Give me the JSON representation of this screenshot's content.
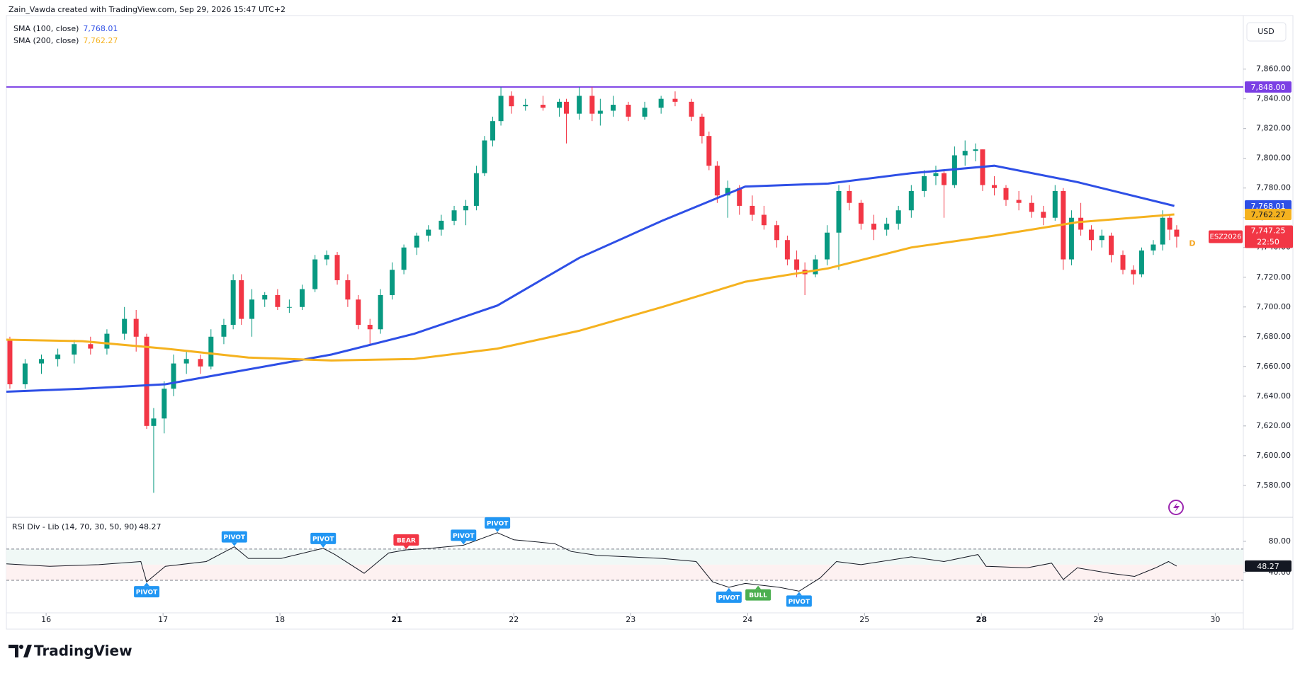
{
  "header": {
    "credit": "Zain_Vawda created with TradingView.com, Sep 29, 2026 15:47 UTC+2",
    "brand": "TradingView"
  },
  "chart_data": [
    {
      "type": "candlestick",
      "currency": "USD",
      "interval_marker": "D",
      "xlim": [
        -0.34,
        10.24
      ],
      "ylim": [
        7559,
        7896
      ],
      "yticks": [
        {
          "value": 7580,
          "label": "7,580.00"
        },
        {
          "value": 7600,
          "label": "7,600.00"
        },
        {
          "value": 7620,
          "label": "7,620.00"
        },
        {
          "value": 7640,
          "label": "7,640.00"
        },
        {
          "value": 7660,
          "label": "7,660.00"
        },
        {
          "value": 7680,
          "label": "7,680.00"
        },
        {
          "value": 7700,
          "label": "7,700.00"
        },
        {
          "value": 7720,
          "label": "7,720.00"
        },
        {
          "value": 7740,
          "label": "7,740.00"
        },
        {
          "value": 7760,
          "label": "7,760.00"
        },
        {
          "value": 7780,
          "label": "7,780.00"
        },
        {
          "value": 7800,
          "label": "7,800.00"
        },
        {
          "value": 7820,
          "label": "7,820.00"
        },
        {
          "value": 7840,
          "label": "7,840.00"
        },
        {
          "value": 7860,
          "label": "7,860.00"
        }
      ],
      "up_color": "#089981",
      "down_color": "#f23645",
      "candles": {
        "x": [
          -0.31,
          -0.18,
          -0.04,
          0.1,
          0.24,
          0.38,
          0.52,
          0.67,
          0.77,
          0.86,
          0.92,
          1.01,
          1.09,
          1.2,
          1.32,
          1.41,
          1.52,
          1.6,
          1.67,
          1.76,
          1.87,
          1.98,
          2.08,
          2.19,
          2.3,
          2.4,
          2.49,
          2.58,
          2.67,
          2.77,
          2.86,
          2.96,
          3.06,
          3.17,
          3.27,
          3.38,
          3.49,
          3.59,
          3.68,
          3.75,
          3.82,
          3.89,
          3.98,
          4.1,
          4.25,
          4.39,
          4.45,
          4.56,
          4.67,
          4.74,
          4.85,
          4.98,
          5.12,
          5.26,
          5.38,
          5.52,
          5.61,
          5.67,
          5.74,
          5.83,
          5.93,
          6.04,
          6.14,
          6.25,
          6.34,
          6.42,
          6.49,
          6.58,
          6.68,
          6.78,
          6.87,
          6.97,
          7.08,
          7.19,
          7.29,
          7.4,
          7.51,
          7.61,
          7.68,
          7.77,
          7.86,
          7.95,
          8.01,
          8.11,
          8.21,
          8.32,
          8.43,
          8.53,
          8.63,
          8.7,
          8.77,
          8.85,
          8.94,
          9.03,
          9.11,
          9.21,
          9.3,
          9.37,
          9.47,
          9.55,
          9.61,
          9.67
        ],
        "open": [
          7678,
          7648,
          7662,
          7665,
          7668,
          7675,
          7672,
          7682,
          7692,
          7680,
          7620,
          7625,
          7645,
          7662,
          7665,
          7660,
          7680,
          7688,
          7718,
          7692,
          7705,
          7708,
          7700,
          7700,
          7712,
          7732,
          7735,
          7718,
          7705,
          7688,
          7685,
          7708,
          7725,
          7740,
          7748,
          7752,
          7758,
          7765,
          7768,
          7790,
          7812,
          7825,
          7842,
          7835,
          7836,
          7834,
          7838,
          7830,
          7842,
          7830,
          7832,
          7836,
          7828,
          7834,
          7840,
          7838,
          7828,
          7815,
          7795,
          7775,
          7780,
          7768,
          7762,
          7755,
          7745,
          7732,
          7725,
          7722,
          7732,
          7750,
          7778,
          7770,
          7756,
          7752,
          7756,
          7765,
          7778,
          7788,
          7790,
          7782,
          7802,
          7805,
          7806,
          7782,
          7780,
          7772,
          7770,
          7764,
          7760,
          7778,
          7732,
          7760,
          7752,
          7745,
          7748,
          7735,
          7725,
          7722,
          7738,
          7742,
          7760,
          7752
        ],
        "high": [
          7680,
          7665,
          7668,
          7672,
          7678,
          7680,
          7685,
          7700,
          7698,
          7682,
          7632,
          7650,
          7668,
          7670,
          7668,
          7685,
          7692,
          7722,
          7722,
          7712,
          7710,
          7712,
          7705,
          7715,
          7735,
          7738,
          7737,
          7722,
          7708,
          7692,
          7712,
          7730,
          7742,
          7750,
          7755,
          7762,
          7768,
          7772,
          7795,
          7815,
          7828,
          7848,
          7845,
          7840,
          7842,
          7840,
          7840,
          7848,
          7848,
          7840,
          7842,
          7838,
          7838,
          7842,
          7845,
          7840,
          7830,
          7818,
          7798,
          7785,
          7782,
          7775,
          7768,
          7758,
          7748,
          7738,
          7730,
          7735,
          7755,
          7782,
          7782,
          7772,
          7762,
          7760,
          7768,
          7782,
          7792,
          7795,
          7792,
          7808,
          7812,
          7810,
          7806,
          7788,
          7782,
          7778,
          7775,
          7768,
          7782,
          7780,
          7765,
          7770,
          7755,
          7752,
          7750,
          7738,
          7728,
          7740,
          7745,
          7765,
          7762,
          7755
        ],
        "low": [
          7645,
          7645,
          7655,
          7660,
          7662,
          7668,
          7668,
          7678,
          7670,
          7618,
          7575,
          7615,
          7640,
          7655,
          7655,
          7658,
          7675,
          7685,
          7688,
          7680,
          7700,
          7698,
          7696,
          7698,
          7710,
          7728,
          7715,
          7700,
          7685,
          7675,
          7682,
          7705,
          7722,
          7735,
          7744,
          7748,
          7755,
          7755,
          7765,
          7788,
          7808,
          7822,
          7830,
          7832,
          7832,
          7828,
          7810,
          7826,
          7825,
          7822,
          7828,
          7825,
          7826,
          7830,
          7835,
          7825,
          7810,
          7792,
          7770,
          7760,
          7762,
          7758,
          7752,
          7740,
          7728,
          7720,
          7708,
          7720,
          7728,
          7725,
          7765,
          7752,
          7745,
          7748,
          7752,
          7760,
          7774,
          7782,
          7760,
          7780,
          7795,
          7798,
          7778,
          7775,
          7768,
          7765,
          7760,
          7755,
          7758,
          7725,
          7728,
          7748,
          7738,
          7740,
          7730,
          7722,
          7715,
          7720,
          7735,
          7738,
          7745,
          7740
        ],
        "close": [
          7648,
          7662,
          7665,
          7668,
          7675,
          7672,
          7682,
          7692,
          7680,
          7620,
          7625,
          7645,
          7662,
          7665,
          7660,
          7680,
          7688,
          7718,
          7692,
          7705,
          7708,
          7700,
          7700,
          7712,
          7732,
          7735,
          7718,
          7705,
          7688,
          7685,
          7708,
          7725,
          7740,
          7748,
          7752,
          7758,
          7765,
          7768,
          7790,
          7812,
          7825,
          7842,
          7835,
          7836,
          7834,
          7838,
          7830,
          7842,
          7830,
          7832,
          7836,
          7828,
          7834,
          7840,
          7838,
          7828,
          7815,
          7795,
          7775,
          7780,
          7768,
          7762,
          7755,
          7745,
          7732,
          7725,
          7722,
          7732,
          7750,
          7778,
          7770,
          7756,
          7752,
          7756,
          7765,
          7778,
          7788,
          7790,
          7782,
          7802,
          7805,
          7806,
          7782,
          7780,
          7772,
          7770,
          7764,
          7760,
          7778,
          7732,
          7760,
          7752,
          7745,
          7748,
          7735,
          7725,
          7722,
          7738,
          7742,
          7760,
          7752,
          7747.25
        ]
      },
      "series": [
        {
          "name": "SMA (100, close)",
          "color": "#2e4fe6",
          "last_label": "7,768.01",
          "x": [
            -0.34,
            0.31,
            1.02,
            1.73,
            2.44,
            3.15,
            3.86,
            4.56,
            5.27,
            5.98,
            6.69,
            7.4,
            8.11,
            8.82,
            9.65
          ],
          "values": [
            7643,
            7645,
            7648,
            7658,
            7668,
            7682,
            7701,
            7733,
            7758,
            7781,
            7783,
            7790,
            7795,
            7784,
            7768.01
          ]
        },
        {
          "name": "SMA (200, close)",
          "color": "#f5b21f",
          "last_label": "7,762.27",
          "x": [
            -0.34,
            0.31,
            1.02,
            1.73,
            2.44,
            3.15,
            3.86,
            4.56,
            5.27,
            5.98,
            6.69,
            7.4,
            8.11,
            8.82,
            9.65
          ],
          "values": [
            7678,
            7677,
            7672,
            7666,
            7664,
            7665,
            7672,
            7684,
            7700,
            7717,
            7726,
            7740,
            7748,
            7757,
            7762.27
          ]
        }
      ],
      "hlines": [
        {
          "value": 7848,
          "label": "7,848.00",
          "color": "#7b3fe4"
        }
      ],
      "symbol": "ESZ2026",
      "last_label": "7,747.25",
      "countdown": "22:50"
    },
    {
      "type": "line",
      "title": "RSI Div - Lib (14, 70, 30, 50, 90)",
      "value_label": "48.27",
      "xlim": [
        -0.34,
        10.24
      ],
      "ylim": [
        -10,
        109
      ],
      "yticks": [
        {
          "value": 80,
          "label": "80.00"
        },
        {
          "value": 40,
          "label": "40.00"
        }
      ],
      "levels": [
        70,
        30
      ],
      "xticks": [
        {
          "value": 0,
          "label": "16"
        },
        {
          "value": 1,
          "label": "17"
        },
        {
          "value": 2,
          "label": "18"
        },
        {
          "value": 3,
          "label": "21",
          "bold": true
        },
        {
          "value": 4,
          "label": "22"
        },
        {
          "value": 5,
          "label": "23"
        },
        {
          "value": 6,
          "label": "24"
        },
        {
          "value": 7,
          "label": "25"
        },
        {
          "value": 8,
          "label": "28",
          "bold": true
        },
        {
          "value": 9,
          "label": "29"
        },
        {
          "value": 10,
          "label": "30"
        }
      ],
      "series": [
        {
          "color": "#131722",
          "x": [
            -0.34,
            0.03,
            0.45,
            0.81,
            0.86,
            1.02,
            1.37,
            1.61,
            1.73,
            2.01,
            2.37,
            2.47,
            2.72,
            2.93,
            3.08,
            3.29,
            3.57,
            3.86,
            4.0,
            4.35,
            4.49,
            4.71,
            5.27,
            5.56,
            5.7,
            5.84,
            5.98,
            6.27,
            6.44,
            6.62,
            6.76,
            6.97,
            7.4,
            7.68,
            7.97,
            8.04,
            8.39,
            8.6,
            8.7,
            8.82,
            9.1,
            9.31,
            9.49,
            9.6,
            9.67
          ],
          "values": [
            51,
            48,
            50,
            54,
            28,
            48,
            54,
            73,
            58,
            58,
            71,
            63,
            39,
            65,
            69,
            71,
            75,
            91,
            82,
            77,
            67,
            62,
            58,
            54,
            28,
            21,
            26,
            21,
            16,
            33,
            54,
            50,
            60,
            54,
            63,
            48,
            46,
            52,
            31,
            46,
            39,
            35,
            46,
            54,
            48.27
          ]
        }
      ],
      "annotations": [
        {
          "text": "PIVOT",
          "x": 0.86,
          "y": 28,
          "color": "#2196f3",
          "side": "below"
        },
        {
          "text": "PIVOT",
          "x": 1.61,
          "y": 73,
          "color": "#2196f3",
          "side": "above"
        },
        {
          "text": "PIVOT",
          "x": 2.37,
          "y": 71,
          "color": "#2196f3",
          "side": "above"
        },
        {
          "text": "BEAR",
          "x": 3.08,
          "y": 69,
          "color": "#f23645",
          "side": "above"
        },
        {
          "text": "PIVOT",
          "x": 3.57,
          "y": 75,
          "color": "#2196f3",
          "side": "above"
        },
        {
          "text": "PIVOT",
          "x": 3.86,
          "y": 91,
          "color": "#2196f3",
          "side": "above"
        },
        {
          "text": "PIVOT",
          "x": 5.84,
          "y": 21,
          "color": "#2196f3",
          "side": "below"
        },
        {
          "text": "BULL",
          "x": 6.09,
          "y": 24,
          "color": "#4caf50",
          "side": "below"
        },
        {
          "text": "PIVOT",
          "x": 6.44,
          "y": 16,
          "color": "#2196f3",
          "side": "below"
        }
      ]
    }
  ]
}
